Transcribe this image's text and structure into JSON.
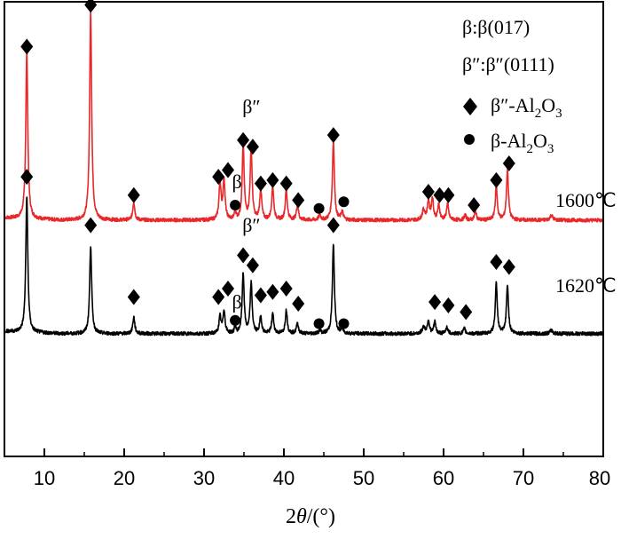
{
  "chart_data": {
    "type": "line",
    "xlabel_prefix": "2",
    "xlabel_var": "θ",
    "xlabel_suffix": "/(°)",
    "ylabel": "",
    "xlim": [
      5,
      80
    ],
    "x_ticks": [
      10,
      20,
      30,
      40,
      50,
      60,
      70,
      80
    ],
    "y_ticks_shown": false,
    "legend": {
      "text_lines": [
        "β:β(017)",
        "β″:β″(0111)"
      ],
      "entries": [
        {
          "marker": "diamond",
          "label_main": "β″-Al",
          "sub1": "2",
          "mid": "O",
          "sub2": "3"
        },
        {
          "marker": "circle",
          "label_main": "β-Al",
          "sub1": "2",
          "mid": "O",
          "sub2": "3"
        }
      ],
      "position": "top-right"
    },
    "series": [
      {
        "name": "1600℃",
        "color": "#e8282b",
        "baseline": 0.08,
        "peaks": [
          {
            "x": 7.8,
            "h": 1.0,
            "w": 0.15
          },
          {
            "x": 15.8,
            "h": 1.25,
            "w": 0.15
          },
          {
            "x": 21.2,
            "h": 0.11,
            "w": 0.15
          },
          {
            "x": 32.0,
            "h": 0.22,
            "w": 0.15
          },
          {
            "x": 32.5,
            "h": 0.24,
            "w": 0.15
          },
          {
            "x": 33.9,
            "h": 0.05,
            "w": 0.12
          },
          {
            "x": 34.9,
            "h": 0.44,
            "w": 0.15
          },
          {
            "x": 35.9,
            "h": 0.42,
            "w": 0.15
          },
          {
            "x": 37.1,
            "h": 0.18,
            "w": 0.15
          },
          {
            "x": 38.6,
            "h": 0.2,
            "w": 0.15
          },
          {
            "x": 40.3,
            "h": 0.18,
            "w": 0.15
          },
          {
            "x": 41.7,
            "h": 0.09,
            "w": 0.15
          },
          {
            "x": 44.5,
            "h": 0.03,
            "w": 0.15
          },
          {
            "x": 46.2,
            "h": 0.47,
            "w": 0.15
          },
          {
            "x": 47.3,
            "h": 0.05,
            "w": 0.15
          },
          {
            "x": 57.5,
            "h": 0.06,
            "w": 0.2
          },
          {
            "x": 58.1,
            "h": 0.11,
            "w": 0.15
          },
          {
            "x": 58.6,
            "h": 0.13,
            "w": 0.15
          },
          {
            "x": 59.4,
            "h": 0.09,
            "w": 0.15
          },
          {
            "x": 60.5,
            "h": 0.1,
            "w": 0.15
          },
          {
            "x": 62.7,
            "h": 0.03,
            "w": 0.15
          },
          {
            "x": 64.0,
            "h": 0.05,
            "w": 0.15
          },
          {
            "x": 66.6,
            "h": 0.2,
            "w": 0.15
          },
          {
            "x": 68.0,
            "h": 0.3,
            "w": 0.15
          },
          {
            "x": 73.5,
            "h": 0.03,
            "w": 0.2
          }
        ],
        "markers": [
          {
            "type": "diamond",
            "x": 7.8,
            "y": 1.12
          },
          {
            "type": "diamond",
            "x": 15.8,
            "y": 1.37
          },
          {
            "type": "diamond",
            "x": 21.2,
            "y": 0.23
          },
          {
            "type": "diamond",
            "x": 31.8,
            "y": 0.34
          },
          {
            "type": "diamond",
            "x": 33.0,
            "y": 0.38
          },
          {
            "type": "diamond",
            "x": 34.9,
            "y": 0.56
          },
          {
            "type": "diamond",
            "x": 36.1,
            "y": 0.52
          },
          {
            "type": "diamond",
            "x": 37.1,
            "y": 0.3
          },
          {
            "type": "diamond",
            "x": 38.6,
            "y": 0.32
          },
          {
            "type": "diamond",
            "x": 40.3,
            "y": 0.3
          },
          {
            "type": "diamond",
            "x": 41.8,
            "y": 0.2
          },
          {
            "type": "diamond",
            "x": 46.2,
            "y": 0.59
          },
          {
            "type": "diamond",
            "x": 58.1,
            "y": 0.25
          },
          {
            "type": "diamond",
            "x": 59.5,
            "y": 0.23
          },
          {
            "type": "diamond",
            "x": 60.6,
            "y": 0.23
          },
          {
            "type": "diamond",
            "x": 63.8,
            "y": 0.17
          },
          {
            "type": "diamond",
            "x": 66.6,
            "y": 0.32
          },
          {
            "type": "diamond",
            "x": 68.2,
            "y": 0.42
          },
          {
            "type": "circle",
            "x": 33.9,
            "y": 0.17
          },
          {
            "type": "circle",
            "x": 44.4,
            "y": 0.15
          },
          {
            "type": "circle",
            "x": 47.5,
            "y": 0.19
          }
        ],
        "annotations": [
          {
            "text": "β″",
            "x": 34.8,
            "y": 0.72
          },
          {
            "text": "β",
            "x": 33.5,
            "y": 0.27
          },
          {
            "text": "1600℃",
            "x": 74.0,
            "y": 0.16
          }
        ]
      },
      {
        "name": "1620℃",
        "color": "#000000",
        "baseline": -0.6,
        "peaks": [
          {
            "x": 7.8,
            "h": 0.82,
            "w": 0.15
          },
          {
            "x": 15.8,
            "h": 0.53,
            "w": 0.15
          },
          {
            "x": 21.2,
            "h": 0.1,
            "w": 0.15
          },
          {
            "x": 32.0,
            "h": 0.1,
            "w": 0.15
          },
          {
            "x": 32.5,
            "h": 0.14,
            "w": 0.15
          },
          {
            "x": 33.9,
            "h": 0.04,
            "w": 0.12
          },
          {
            "x": 34.9,
            "h": 0.36,
            "w": 0.15
          },
          {
            "x": 35.9,
            "h": 0.3,
            "w": 0.15
          },
          {
            "x": 37.1,
            "h": 0.1,
            "w": 0.15
          },
          {
            "x": 38.6,
            "h": 0.12,
            "w": 0.15
          },
          {
            "x": 40.3,
            "h": 0.14,
            "w": 0.15
          },
          {
            "x": 41.7,
            "h": 0.06,
            "w": 0.15
          },
          {
            "x": 44.5,
            "h": 0.02,
            "w": 0.15
          },
          {
            "x": 46.2,
            "h": 0.53,
            "w": 0.15
          },
          {
            "x": 47.3,
            "h": 0.03,
            "w": 0.15
          },
          {
            "x": 57.5,
            "h": 0.04,
            "w": 0.2
          },
          {
            "x": 58.1,
            "h": 0.08,
            "w": 0.15
          },
          {
            "x": 58.9,
            "h": 0.07,
            "w": 0.15
          },
          {
            "x": 60.4,
            "h": 0.04,
            "w": 0.15
          },
          {
            "x": 62.6,
            "h": 0.03,
            "w": 0.15
          },
          {
            "x": 66.6,
            "h": 0.3,
            "w": 0.15
          },
          {
            "x": 68.0,
            "h": 0.29,
            "w": 0.15
          },
          {
            "x": 73.5,
            "h": 0.02,
            "w": 0.2
          }
        ],
        "markers": [
          {
            "type": "diamond",
            "x": 7.8,
            "y": 0.34
          },
          {
            "type": "diamond",
            "x": 15.8,
            "y": 0.05
          },
          {
            "type": "diamond",
            "x": 21.2,
            "y": -0.38
          },
          {
            "type": "diamond",
            "x": 31.8,
            "y": -0.38
          },
          {
            "type": "diamond",
            "x": 33.0,
            "y": -0.33
          },
          {
            "type": "diamond",
            "x": 34.9,
            "y": -0.13
          },
          {
            "type": "diamond",
            "x": 36.1,
            "y": -0.19
          },
          {
            "type": "diamond",
            "x": 37.1,
            "y": -0.37
          },
          {
            "type": "diamond",
            "x": 38.6,
            "y": -0.35
          },
          {
            "type": "diamond",
            "x": 40.3,
            "y": -0.33
          },
          {
            "type": "diamond",
            "x": 41.8,
            "y": -0.42
          },
          {
            "type": "diamond",
            "x": 46.2,
            "y": 0.05
          },
          {
            "type": "diamond",
            "x": 58.9,
            "y": -0.41
          },
          {
            "type": "diamond",
            "x": 60.6,
            "y": -0.43
          },
          {
            "type": "diamond",
            "x": 62.8,
            "y": -0.47
          },
          {
            "type": "diamond",
            "x": 66.6,
            "y": -0.17
          },
          {
            "type": "diamond",
            "x": 68.2,
            "y": -0.2
          },
          {
            "type": "circle",
            "x": 33.9,
            "y": -0.52
          },
          {
            "type": "circle",
            "x": 44.4,
            "y": -0.54
          },
          {
            "type": "circle",
            "x": 47.5,
            "y": -0.54
          }
        ],
        "annotations": [
          {
            "text": "β″",
            "x": 34.8,
            "y": 0.01
          },
          {
            "text": "β",
            "x": 33.5,
            "y": -0.45
          },
          {
            "text": "1620℃",
            "x": 74.0,
            "y": -0.35
          }
        ]
      }
    ]
  }
}
